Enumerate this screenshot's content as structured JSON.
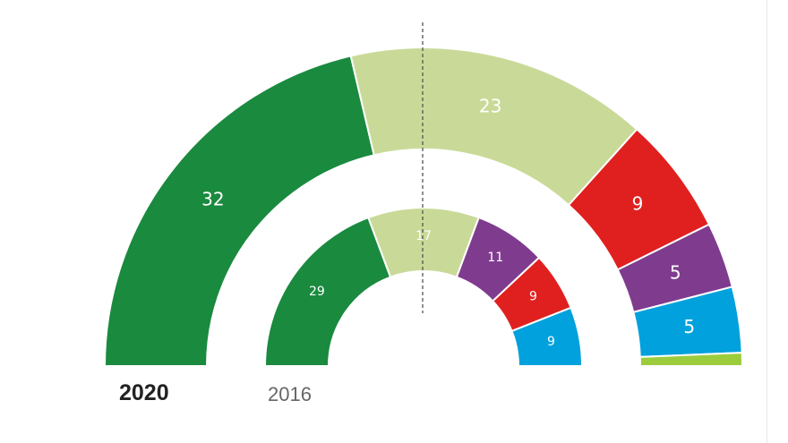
{
  "colors": {
    "dark_green": "#1a8a3e",
    "light_green": "#c9da98",
    "red": "#e0201f",
    "purple": "#7f3c8f",
    "blue": "#00a1dc",
    "lime": "#9ccc3c",
    "divider": "#555555"
  },
  "chart_data": {
    "type": "parliament-semicircle",
    "charts": [
      {
        "label": "2020",
        "ring": "outer",
        "seats": [
          {
            "value": 32,
            "label": "32",
            "color": "#1a8a3e"
          },
          {
            "value": 23,
            "label": "23",
            "color": "#c9da98"
          },
          {
            "value": 9,
            "label": "9",
            "color": "#e0201f"
          },
          {
            "value": 5,
            "label": "5",
            "color": "#7f3c8f"
          },
          {
            "value": 5,
            "label": "5",
            "color": "#00a1dc"
          },
          {
            "value": 1,
            "label": "",
            "color": "#9ccc3c"
          }
        ]
      },
      {
        "label": "2016",
        "ring": "inner",
        "seats": [
          {
            "value": 29,
            "label": "29",
            "color": "#1a8a3e"
          },
          {
            "value": 17,
            "label": "17",
            "color": "#c9da98"
          },
          {
            "value": 11,
            "label": "11",
            "color": "#7f3c8f"
          },
          {
            "value": 9,
            "label": "9",
            "color": "#e0201f"
          },
          {
            "value": 9,
            "label": "9",
            "color": "#00a1dc"
          }
        ]
      }
    ],
    "majority_line": true
  }
}
